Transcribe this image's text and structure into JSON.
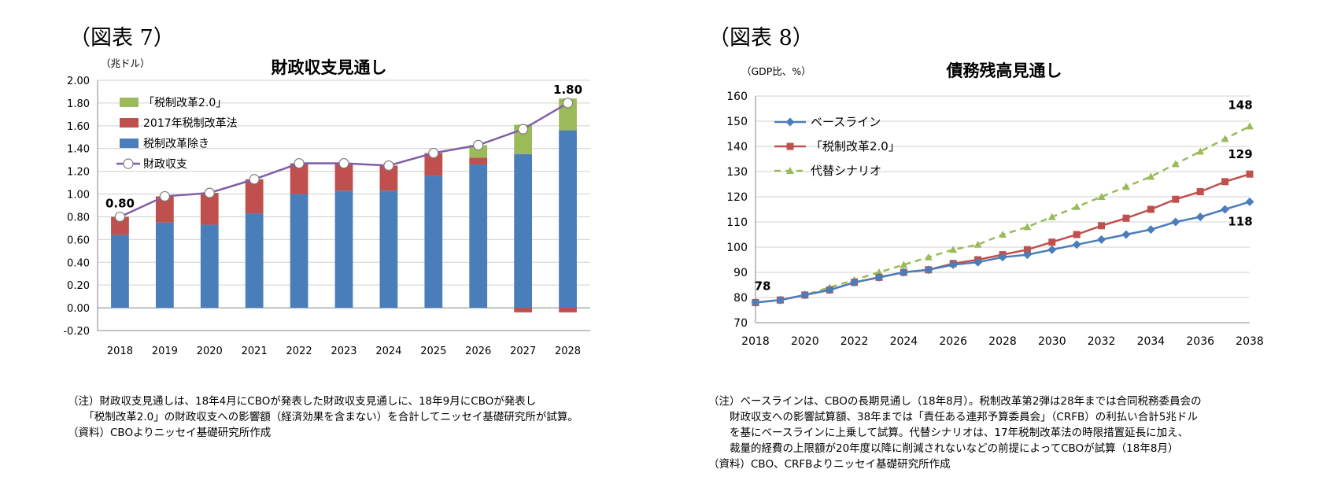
{
  "figure7": {
    "fig_label": "（図表 7）",
    "notes": [
      "（注）財政収支見通しは、18年4月にCBOが発表した財政収支見通しに、18年9月にCBOが発表し",
      "　　「税制改革2.0」の財政収支への影響額（経済効果を含まない）を合計してニッセイ基礎研究所が試算。",
      "（資料）CBOよりニッセイ基礎研究所作成"
    ]
  },
  "figure8": {
    "fig_label": "（図表 8）",
    "notes": [
      "（注）ベースラインは、CBOの長期見通し（18年8月）。税制改革第2弾は28年までは合同税務委員会の",
      "　　財政収支への影響試算額、38年までは「責任ある連邦予算委員会」（CRFB）の利払い合計5兆ドル",
      "　　を基にベースラインに上乗して試算。代替シナリオは、17年税制改革法の時限措置延長に加え、",
      "　　裁量的経費の上限額が20年度以降に削減されないなどの前提によってCBOが試算（18年8月）",
      "（資料）CBO、CRFBよりニッセイ基礎研究所作成"
    ]
  },
  "chart_data": [
    {
      "type": "bar",
      "stacked": true,
      "title": "財政収支見通し",
      "unit_label": "（兆ドル）",
      "categories": [
        "2018",
        "2019",
        "2020",
        "2021",
        "2022",
        "2023",
        "2024",
        "2025",
        "2026",
        "2027",
        "2028"
      ],
      "ylim": [
        -0.2,
        2.0
      ],
      "yticks": [
        "-0.20",
        "0.00",
        "0.20",
        "0.40",
        "0.60",
        "0.80",
        "1.00",
        "1.20",
        "1.40",
        "1.60",
        "1.80",
        "2.00"
      ],
      "grid": true,
      "legend_position": "top-left",
      "series": [
        {
          "name": "税制改革除き",
          "type": "bar",
          "color": "#4a7ebb",
          "values": [
            0.64,
            0.75,
            0.73,
            0.83,
            1.0,
            1.03,
            1.03,
            1.16,
            1.26,
            1.35,
            1.56
          ]
        },
        {
          "name": "2017年税制改革法",
          "type": "bar",
          "color": "#c0504d",
          "values": [
            0.16,
            0.23,
            0.28,
            0.3,
            0.27,
            0.24,
            0.22,
            0.2,
            0.06,
            -0.04,
            -0.04
          ]
        },
        {
          "name": "「税制改革2.0」",
          "type": "bar",
          "color": "#9bbb59",
          "values": [
            0.0,
            0.0,
            0.0,
            0.0,
            0.0,
            0.0,
            0.0,
            0.0,
            0.11,
            0.26,
            0.28
          ]
        },
        {
          "name": "財政収支",
          "type": "line",
          "color": "#7f5fa8",
          "values": [
            0.8,
            0.98,
            1.01,
            1.13,
            1.27,
            1.27,
            1.25,
            1.36,
            1.43,
            1.57,
            1.8
          ]
        }
      ],
      "legend_order": [
        "「税制改革2.0」",
        "2017年税制改革法",
        "税制改革除き",
        "財政収支"
      ],
      "data_labels": [
        {
          "category": "2018",
          "text": "0.80"
        },
        {
          "category": "2028",
          "text": "1.80"
        }
      ]
    },
    {
      "type": "line",
      "title": "債務残高見通し",
      "unit_label": "（GDP比、%）",
      "x": [
        2018,
        2019,
        2020,
        2021,
        2022,
        2023,
        2024,
        2025,
        2026,
        2027,
        2028,
        2029,
        2030,
        2031,
        2032,
        2033,
        2034,
        2035,
        2036,
        2037,
        2038
      ],
      "xticks": [
        "2018",
        "2020",
        "2022",
        "2024",
        "2026",
        "2028",
        "2030",
        "2032",
        "2034",
        "2036",
        "2038"
      ],
      "ylim": [
        70,
        160
      ],
      "yticks": [
        "70",
        "80",
        "90",
        "100",
        "110",
        "120",
        "130",
        "140",
        "150",
        "160"
      ],
      "grid": true,
      "legend_position": "top-left",
      "series": [
        {
          "name": "ベースライン",
          "color": "#4a7ebb",
          "marker": "diamond",
          "dash": false,
          "values": [
            78,
            79,
            81,
            83,
            86,
            88,
            90,
            91,
            93,
            94,
            96,
            97,
            99,
            101,
            103,
            105,
            107,
            110,
            112,
            115,
            118
          ]
        },
        {
          "name": "「税制改革2.0」",
          "color": "#c0504d",
          "marker": "square",
          "dash": false,
          "values": [
            78,
            79,
            81,
            83,
            86,
            88,
            90,
            91,
            93.5,
            95,
            97,
            99,
            102,
            105,
            108.5,
            111.5,
            115,
            119,
            122,
            126,
            129
          ]
        },
        {
          "name": "代替シナリオ",
          "color": "#9bbb59",
          "marker": "triangle",
          "dash": true,
          "values": [
            78,
            79,
            81,
            84,
            87,
            90,
            93,
            96,
            99,
            101,
            105,
            108,
            112,
            116,
            120,
            124,
            128,
            133,
            138,
            143,
            148
          ]
        }
      ],
      "data_labels": [
        {
          "x": 2018,
          "text": "78"
        },
        {
          "x": 2038,
          "text": "148"
        },
        {
          "x": 2038,
          "text": "129"
        },
        {
          "x": 2038,
          "text": "118"
        }
      ]
    }
  ]
}
